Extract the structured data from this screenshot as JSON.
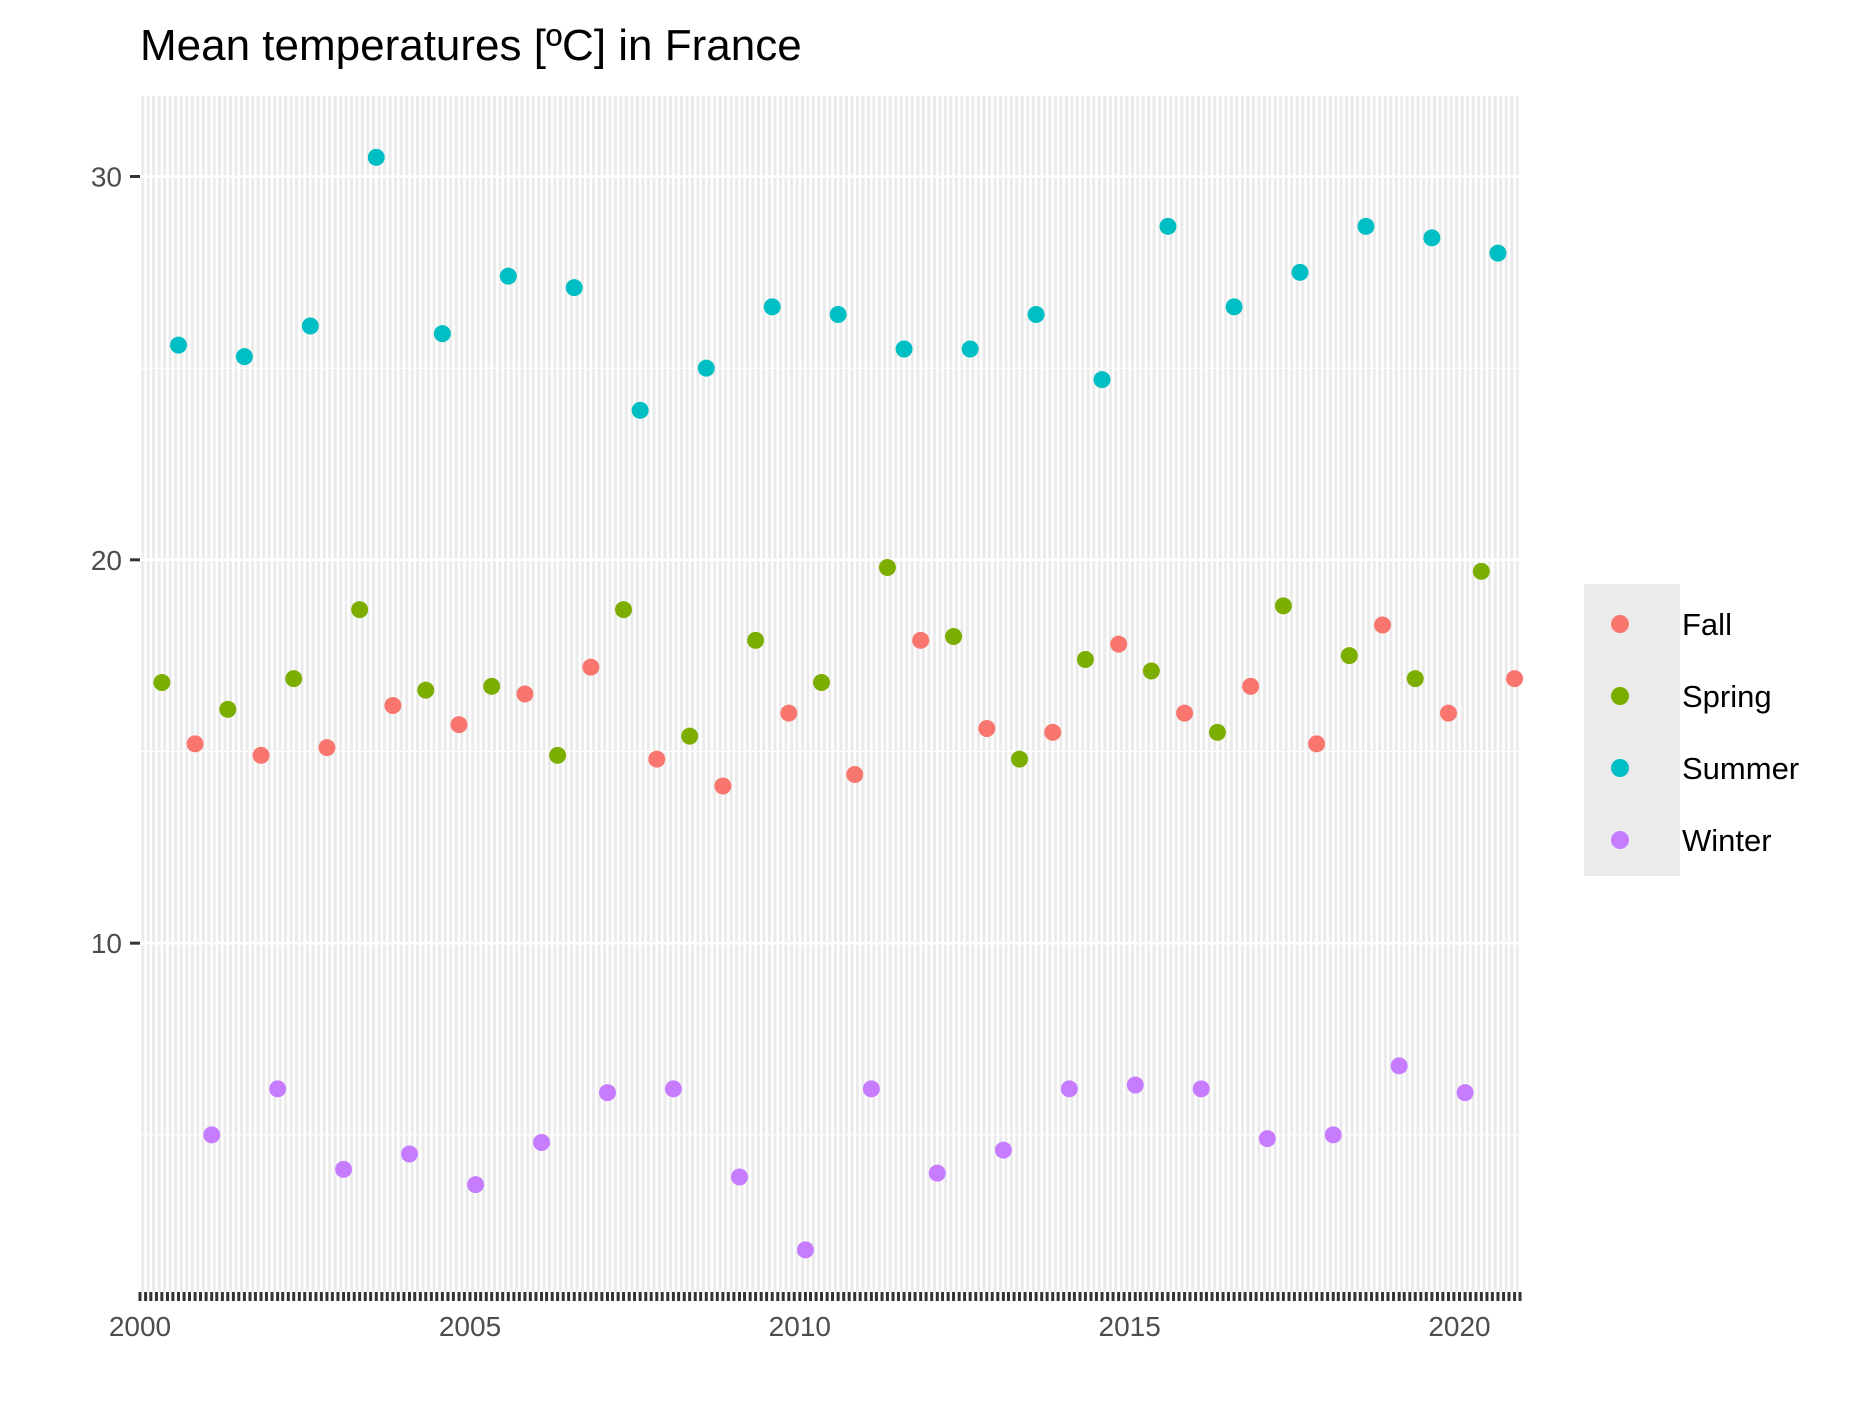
{
  "chart_data": {
    "type": "scatter",
    "title": "Mean temperatures [ºC] in France",
    "xlabel": "",
    "ylabel": "",
    "xlim": [
      "2000-01-01",
      "2020-12-01"
    ],
    "ylim": [
      0.9,
      32.1
    ],
    "x_ticks": [
      "2000",
      "2005",
      "2010",
      "2015",
      "2020"
    ],
    "y_ticks": [
      "10",
      "20",
      "30"
    ],
    "grid": true,
    "minor_x_gridlines": "monthly",
    "legend_position": "right",
    "colors": {
      "Fall": "#F8766D",
      "Spring": "#7CAE00",
      "Summer": "#00BFC4",
      "Winter": "#C77CFF",
      "panel_background": "#EBEBEB",
      "grid": "#FFFFFF",
      "legend_background": "#EBEBEB"
    },
    "series": [
      {
        "name": "Fall",
        "x": [
          "2000-11-01",
          "2001-11-01",
          "2002-11-01",
          "2003-11-01",
          "2004-11-01",
          "2005-11-01",
          "2006-11-01",
          "2007-11-01",
          "2008-11-01",
          "2009-11-01",
          "2010-11-01",
          "2011-11-01",
          "2012-11-01",
          "2013-11-01",
          "2014-11-01",
          "2015-11-01",
          "2016-11-01",
          "2017-11-01",
          "2018-11-01",
          "2019-11-01",
          "2020-11-01"
        ],
        "y": [
          15.2,
          14.9,
          15.1,
          16.2,
          15.7,
          16.5,
          17.2,
          14.8,
          14.1,
          16.0,
          14.4,
          17.9,
          15.6,
          15.5,
          17.8,
          16.0,
          16.7,
          15.2,
          18.3,
          16.0,
          16.9
        ]
      },
      {
        "name": "Spring",
        "x": [
          "2000-05-01",
          "2001-05-01",
          "2002-05-01",
          "2003-05-01",
          "2004-05-01",
          "2005-05-01",
          "2006-05-01",
          "2007-05-01",
          "2008-05-01",
          "2009-05-01",
          "2010-05-01",
          "2011-05-01",
          "2012-05-01",
          "2013-05-01",
          "2014-05-01",
          "2015-05-01",
          "2016-05-01",
          "2017-05-01",
          "2018-05-01",
          "2019-05-01",
          "2020-05-01"
        ],
        "y": [
          16.8,
          16.1,
          16.9,
          18.7,
          16.6,
          16.7,
          14.9,
          18.7,
          15.4,
          17.9,
          16.8,
          19.8,
          18.0,
          14.8,
          17.4,
          17.1,
          15.5,
          18.8,
          17.5,
          16.9,
          19.7
        ]
      },
      {
        "name": "Summer",
        "x": [
          "2000-08-01",
          "2001-08-01",
          "2002-08-01",
          "2003-08-01",
          "2004-08-01",
          "2005-08-01",
          "2006-08-01",
          "2007-08-01",
          "2008-08-01",
          "2009-08-01",
          "2010-08-01",
          "2011-08-01",
          "2012-08-01",
          "2013-08-01",
          "2014-08-01",
          "2015-08-01",
          "2016-08-01",
          "2017-08-01",
          "2018-08-01",
          "2019-08-01",
          "2020-08-01"
        ],
        "y": [
          25.6,
          25.3,
          26.1,
          30.5,
          25.9,
          27.4,
          27.1,
          23.9,
          25.0,
          26.6,
          26.4,
          25.5,
          25.5,
          26.4,
          24.7,
          28.7,
          26.6,
          27.5,
          28.7,
          28.4,
          28.0
        ]
      },
      {
        "name": "Winter",
        "x": [
          "2001-02-01",
          "2002-02-01",
          "2003-02-01",
          "2004-02-01",
          "2005-02-01",
          "2006-02-01",
          "2007-02-01",
          "2008-02-01",
          "2009-02-01",
          "2010-02-01",
          "2011-02-01",
          "2012-02-01",
          "2013-02-01",
          "2014-02-01",
          "2015-02-01",
          "2016-02-01",
          "2017-02-01",
          "2018-02-01",
          "2019-02-01",
          "2020-02-01"
        ],
        "y": [
          5.0,
          6.2,
          4.1,
          4.5,
          3.7,
          4.8,
          6.1,
          6.2,
          3.9,
          2.0,
          6.2,
          4.0,
          4.6,
          6.2,
          6.3,
          6.2,
          4.9,
          5.0,
          6.8,
          6.1
        ]
      }
    ]
  }
}
